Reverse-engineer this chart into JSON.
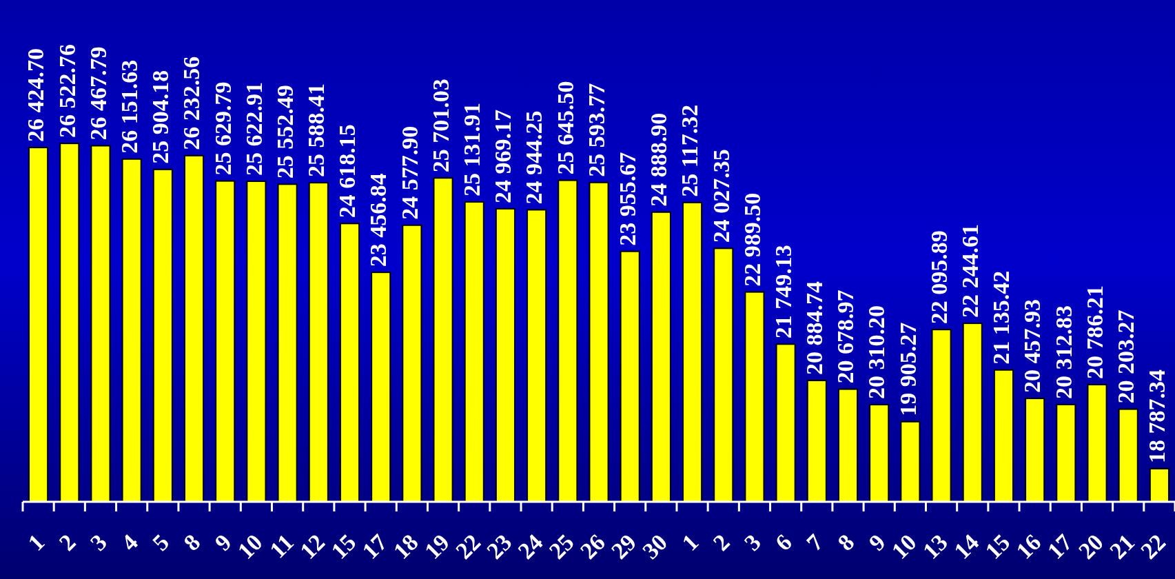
{
  "chart_data": {
    "type": "bar",
    "categories": [
      "1",
      "2",
      "3",
      "4",
      "5",
      "8",
      "9",
      "10",
      "11",
      "12",
      "15",
      "17",
      "18",
      "19",
      "22",
      "23",
      "24",
      "25",
      "26",
      "29",
      "30",
      "1",
      "2",
      "3",
      "6",
      "7",
      "8",
      "9",
      "10",
      "13",
      "14",
      "15",
      "16",
      "17",
      "20",
      "21",
      "22"
    ],
    "values": [
      26424.7,
      26522.76,
      26467.79,
      26151.63,
      25904.18,
      26232.56,
      25629.79,
      25622.91,
      25552.49,
      25588.41,
      24618.15,
      23456.84,
      24577.9,
      25701.03,
      25131.91,
      24969.17,
      24944.25,
      25645.5,
      25593.77,
      23955.67,
      24888.9,
      25117.32,
      24027.35,
      22989.5,
      21749.13,
      20884.74,
      20678.97,
      20310.2,
      19905.27,
      22095.89,
      22244.61,
      21135.42,
      20457.93,
      20312.83,
      20786.21,
      20203.27,
      18787.34
    ],
    "value_labels": [
      "26 424.70",
      "26 522.76",
      "26 467.79",
      "26 151.63",
      "25 904.18",
      "26 232.56",
      "25 629.79",
      "25 622.91",
      "25 552.49",
      "25 588.41",
      "24 618.15",
      "23 456.84",
      "24 577.90",
      "25 701.03",
      "25 131.91",
      "24 969.17",
      "24 944.25",
      "25 645.50",
      "25 593.77",
      "23 955.67",
      "24 888.90",
      "25 117.32",
      "24 027.35",
      "22 989.50",
      "21 749.13",
      "20 884.74",
      "20 678.97",
      "20 310.20",
      "19 905.27",
      "22 095.89",
      "22 244.61",
      "21 135.42",
      "20 457.93",
      "20 312.83",
      "20 786.21",
      "20 203.27",
      "18 787.34"
    ],
    "color": "#ffff00",
    "ylim": [
      18000,
      30000
    ],
    "tick_labels": "x"
  }
}
